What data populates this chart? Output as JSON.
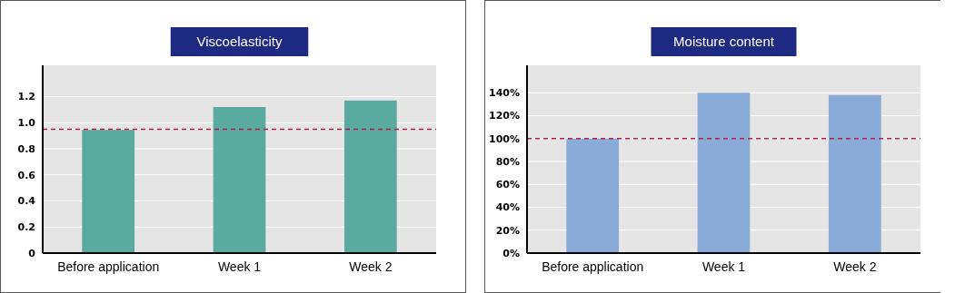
{
  "chart_data": [
    {
      "type": "bar",
      "title": "Viscoelasticity",
      "categories": [
        "Before application",
        "Week 1",
        "Week 2"
      ],
      "values": [
        0.945,
        1.12,
        1.17
      ],
      "color": "#5aaaa0",
      "ylim": [
        0,
        1.44
      ],
      "yticks": [
        {
          "value": 0,
          "label": "0"
        },
        0.2,
        0.4,
        0.6,
        0.8,
        {
          "value": 1,
          "label": "1.0"
        },
        1.2
      ],
      "grid": "y",
      "ref_lines": [
        {
          "axis": "y",
          "value": 0.95,
          "color": "#b0214a",
          "line_style": "dashed"
        }
      ]
    },
    {
      "type": "bar",
      "title": "Moisture content",
      "categories": [
        "Before application",
        "Week 1",
        "Week 2"
      ],
      "values": [
        100,
        140,
        138
      ],
      "color": "#8aaad8",
      "ylim": [
        0,
        164
      ],
      "yticks": [
        {
          "value": 0,
          "label": "0%"
        },
        {
          "value": 20,
          "label": "20%"
        },
        {
          "value": 40,
          "label": "40%"
        },
        {
          "value": 60,
          "label": "60%"
        },
        {
          "value": 80,
          "label": "80%"
        },
        {
          "value": 100,
          "label": "100%"
        },
        {
          "value": 120,
          "label": "120%"
        },
        {
          "value": 140,
          "label": "140%"
        }
      ],
      "grid": "y",
      "ref_lines": [
        {
          "axis": "y",
          "value": 100,
          "color": "#b0214a",
          "line_style": "dashed"
        }
      ]
    }
  ]
}
